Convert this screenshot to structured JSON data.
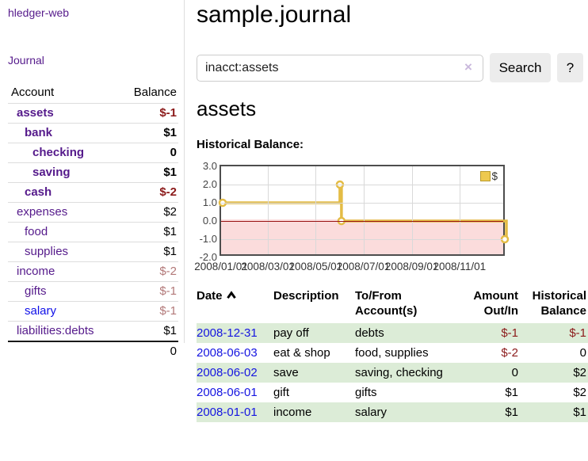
{
  "app": {
    "brand": "hledger-web"
  },
  "nav": {
    "journal": "Journal"
  },
  "sidebar": {
    "header": {
      "account": "Account",
      "balance": "Balance"
    },
    "accounts": [
      {
        "name": "assets",
        "balance": "$-1"
      },
      {
        "name": "bank",
        "balance": "$1"
      },
      {
        "name": "checking",
        "balance": "0"
      },
      {
        "name": "saving",
        "balance": "$1"
      },
      {
        "name": "cash",
        "balance": "$-2"
      },
      {
        "name": "expenses",
        "balance": "$2"
      },
      {
        "name": "food",
        "balance": "$1"
      },
      {
        "name": "supplies",
        "balance": "$1"
      },
      {
        "name": "income",
        "balance": "$-2"
      },
      {
        "name": "gifts",
        "balance": "$-1"
      },
      {
        "name": "salary",
        "balance": "$-1"
      },
      {
        "name": "liabilities:debts",
        "balance": "$1"
      }
    ],
    "total": "0"
  },
  "main": {
    "title": "sample.journal",
    "search": {
      "value": "inacct:assets",
      "clear": "×",
      "button": "Search",
      "help": "?"
    },
    "account_heading": "assets",
    "chart_heading": "Historical Balance:"
  },
  "chart_data": {
    "type": "line",
    "step": true,
    "title": "Historical Balance",
    "xlim": [
      "2008-01-01",
      "2008-12-31"
    ],
    "ylim": [
      -2,
      3
    ],
    "grid": true,
    "legend_position": "top-right",
    "series": [
      {
        "name": "$",
        "points": [
          [
            "2008-01-01",
            1
          ],
          [
            "2008-06-01",
            2
          ],
          [
            "2008-06-03",
            0
          ],
          [
            "2008-12-31",
            -1
          ]
        ]
      }
    ],
    "y_ticks": [
      {
        "value": 3,
        "label": "3.0"
      },
      {
        "value": 2,
        "label": "2.0"
      },
      {
        "value": 1,
        "label": "1.0"
      },
      {
        "value": 0,
        "label": "0.0"
      },
      {
        "value": -1,
        "label": "-1.0"
      },
      {
        "value": -2,
        "label": "-2.0"
      }
    ],
    "x_ticks": [
      {
        "date": "2008-01-01",
        "label": "2008/01/01"
      },
      {
        "date": "2008-03-01",
        "label": "2008/03/01"
      },
      {
        "date": "2008-05-01",
        "label": "2008/05/01"
      },
      {
        "date": "2008-07-01",
        "label": "2008/07/01"
      },
      {
        "date": "2008-09-01",
        "label": "2008/09/01"
      },
      {
        "date": "2008-11-01",
        "label": "2008/11/01"
      }
    ],
    "colors": {
      "series": "#e4bc45",
      "marker_fill": "#ffffff",
      "zero_line": "#991414",
      "negative_region": "#fbdcdc"
    },
    "legend_label": "$"
  },
  "register": {
    "columns": [
      "Date",
      "Description",
      "To/From Account(s)",
      "Amount Out/In",
      "Historical Balance"
    ],
    "rows": [
      {
        "date": "2008-12-31",
        "description": "pay off",
        "accounts": "debts",
        "amount": "$-1",
        "balance": "$-1"
      },
      {
        "date": "2008-06-03",
        "description": "eat & shop",
        "accounts": "food, supplies",
        "amount": "$-2",
        "balance": "0"
      },
      {
        "date": "2008-06-02",
        "description": "save",
        "accounts": "saving, checking",
        "amount": "0",
        "balance": "$2"
      },
      {
        "date": "2008-06-01",
        "description": "gift",
        "accounts": "gifts",
        "amount": "$1",
        "balance": "$2"
      },
      {
        "date": "2008-01-01",
        "description": "income",
        "accounts": "salary",
        "amount": "$1",
        "balance": "$1"
      }
    ]
  },
  "colors": {
    "link_purple": "#551a8b",
    "link_blue": "#0f0fe8",
    "negative": "#8b1a1a",
    "negative_muted": "#b27878",
    "row_green": "#dcecd7",
    "series_gold": "#e4bc45"
  }
}
